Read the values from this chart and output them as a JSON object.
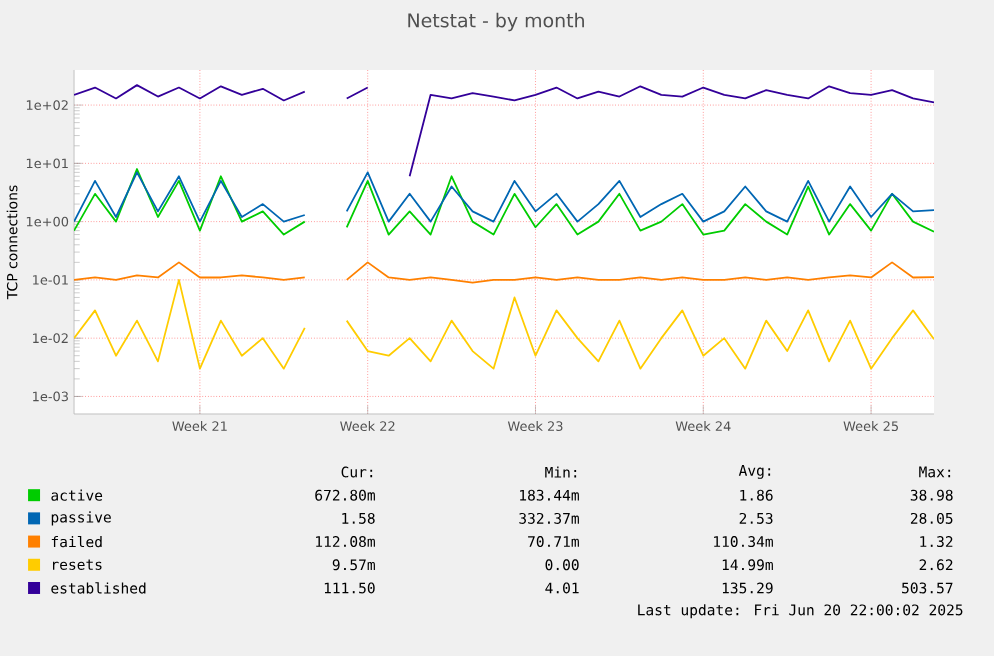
{
  "chart_data": {
    "type": "line",
    "title": "Netstat - by month",
    "ylabel": "TCP connections",
    "log": "y",
    "grid": true,
    "legend": "bottom",
    "marker": "none",
    "line_style": "solid",
    "categories": [
      null,
      null,
      null,
      null,
      null,
      null,
      "Week 21",
      null,
      null,
      null,
      null,
      null,
      null,
      null,
      "Week 22",
      null,
      null,
      null,
      null,
      null,
      null,
      null,
      "Week 23",
      null,
      null,
      null,
      null,
      null,
      null,
      null,
      "Week 24",
      null,
      null,
      null,
      null,
      null,
      null,
      null,
      "Week 25",
      null,
      null,
      null
    ],
    "ylim": [
      0.0005,
      400
    ],
    "yticks": [
      {
        "value": 0.001,
        "label": "1e-03"
      },
      {
        "value": 0.01,
        "label": "1e-02"
      },
      {
        "value": 0.1,
        "label": "1e-01"
      },
      {
        "value": 1,
        "label": "1e+00"
      },
      {
        "value": 10,
        "label": "1e+01"
      },
      {
        "value": 100,
        "label": "1e+02"
      }
    ],
    "series": [
      {
        "name": "active",
        "color": "#00cc00",
        "values": [
          0.7,
          3,
          1,
          8,
          1.2,
          5,
          0.7,
          6,
          1,
          1.5,
          0.6,
          1,
          null,
          0.8,
          5,
          0.6,
          1.5,
          0.6,
          6,
          1,
          0.6,
          3,
          0.8,
          2,
          0.6,
          1,
          3,
          0.7,
          1,
          2,
          0.6,
          0.7,
          2,
          1,
          0.6,
          4,
          0.6,
          2,
          0.7,
          3,
          1,
          0.67
        ]
      },
      {
        "name": "passive",
        "color": "#0066b3",
        "values": [
          1,
          5,
          1.2,
          7,
          1.5,
          6,
          1,
          5,
          1.2,
          2,
          1,
          1.3,
          null,
          1.5,
          7,
          1,
          3,
          1,
          4,
          1.5,
          1,
          5,
          1.5,
          3,
          1,
          2,
          5,
          1.2,
          2,
          3,
          1,
          1.5,
          4,
          1.5,
          1,
          5,
          1,
          4,
          1.2,
          3,
          1.5,
          1.58
        ]
      },
      {
        "name": "failed",
        "color": "#ff8000",
        "values": [
          0.1,
          0.11,
          0.1,
          0.12,
          0.11,
          0.2,
          0.11,
          0.11,
          0.12,
          0.11,
          0.1,
          0.11,
          null,
          0.1,
          0.2,
          0.11,
          0.1,
          0.11,
          0.1,
          0.09,
          0.1,
          0.1,
          0.11,
          0.1,
          0.11,
          0.1,
          0.1,
          0.11,
          0.1,
          0.11,
          0.1,
          0.1,
          0.11,
          0.1,
          0.11,
          0.1,
          0.11,
          0.12,
          0.11,
          0.2,
          0.11,
          0.112
        ]
      },
      {
        "name": "resets",
        "color": "#ffcc00",
        "values": [
          0.01,
          0.03,
          0.005,
          0.02,
          0.004,
          0.1,
          0.003,
          0.02,
          0.005,
          0.01,
          0.003,
          0.015,
          null,
          0.02,
          0.006,
          0.005,
          0.01,
          0.004,
          0.02,
          0.006,
          0.003,
          0.05,
          0.005,
          0.03,
          0.01,
          0.004,
          0.02,
          0.003,
          0.01,
          0.03,
          0.005,
          0.01,
          0.003,
          0.02,
          0.006,
          0.03,
          0.004,
          0.02,
          0.003,
          0.01,
          0.03,
          0.0096
        ]
      },
      {
        "name": "established",
        "color": "#330099",
        "values": [
          150,
          200,
          130,
          220,
          140,
          200,
          130,
          210,
          150,
          190,
          120,
          170,
          null,
          130,
          200,
          null,
          6,
          150,
          130,
          160,
          140,
          120,
          150,
          200,
          130,
          170,
          140,
          210,
          150,
          140,
          200,
          150,
          130,
          180,
          150,
          130,
          210,
          160,
          150,
          180,
          130,
          111.5
        ]
      }
    ],
    "annotations": [
      "Cur:",
      "Min:",
      "Avg:",
      "Max:",
      "672.80m",
      "183.44m",
      "1.86",
      "38.98",
      "1.58",
      "332.37m",
      "2.53",
      "28.05",
      "112.08m",
      "70.71m",
      "110.34m",
      "1.32",
      "9.57m",
      "0.00",
      "14.99m",
      "2.62",
      "111.50",
      "4.01",
      "135.29",
      "503.57",
      "Last update: Fri Jun 20 22:00:02 2025"
    ]
  }
}
